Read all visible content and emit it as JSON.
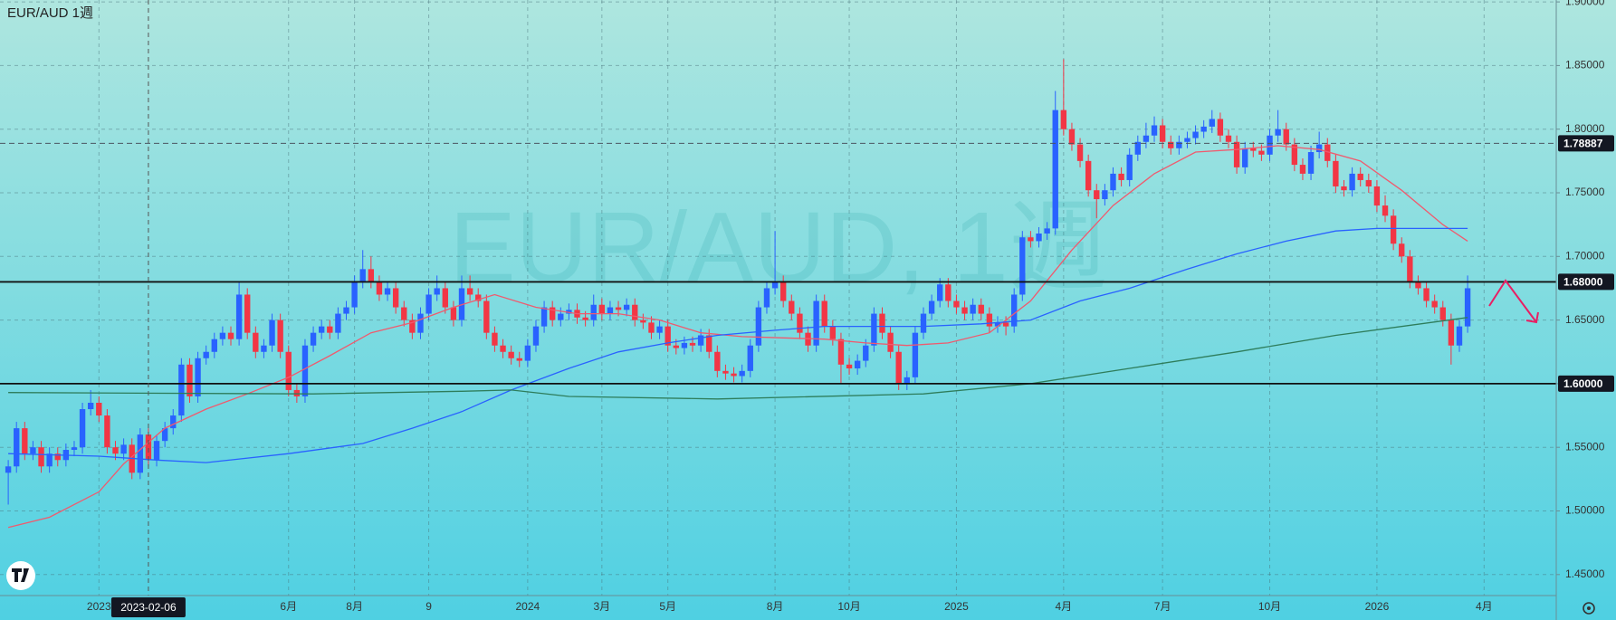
{
  "chart_data": {
    "type": "candlestick",
    "title": "EUR/AUD  1週",
    "watermark": "EUR/AUD, 1週",
    "up_color": "#2962ff",
    "down_color": "#f23645",
    "open": [
      1.53,
      1.535,
      1.565,
      1.545,
      1.55,
      1.535,
      1.545,
      1.54,
      1.548,
      1.55,
      1.58,
      1.585,
      1.575,
      1.55,
      1.545,
      1.552,
      1.53,
      1.56,
      1.54,
      1.555,
      1.565,
      1.575,
      1.615,
      1.59,
      1.62,
      1.625,
      1.635,
      1.64,
      1.635,
      1.67,
      1.64,
      1.625,
      1.63,
      1.65,
      1.625,
      1.595,
      1.59,
      1.63,
      1.64,
      1.645,
      1.64,
      1.655,
      1.66,
      1.68,
      1.69,
      1.68,
      1.67,
      1.675,
      1.66,
      1.65,
      1.64,
      1.655,
      1.67,
      1.675,
      1.66,
      1.65,
      1.675,
      1.67,
      1.665,
      1.64,
      1.63,
      1.625,
      1.62,
      1.618,
      1.63,
      1.645,
      1.66,
      1.65,
      1.655,
      1.658,
      1.652,
      1.65,
      1.662,
      1.655,
      1.66,
      1.658,
      1.662,
      1.65,
      1.648,
      1.64,
      1.645,
      1.63,
      1.628,
      1.632,
      1.63,
      1.638,
      1.625,
      1.61,
      1.608,
      1.606,
      1.61,
      1.63,
      1.66,
      1.675,
      1.68,
      1.665,
      1.655,
      1.64,
      1.63,
      1.665,
      1.645,
      1.635,
      1.615,
      1.612,
      1.618,
      1.63,
      1.655,
      1.64,
      1.625,
      1.6,
      1.605,
      1.64,
      1.655,
      1.665,
      1.678,
      1.665,
      1.66,
      1.655,
      1.662,
      1.655,
      1.645,
      1.648,
      1.645,
      1.67,
      1.715,
      1.712,
      1.718,
      1.722,
      1.815,
      1.8,
      1.788,
      1.775,
      1.752,
      1.745,
      1.752,
      1.765,
      1.76,
      1.78,
      1.79,
      1.795,
      1.803,
      1.79,
      1.785,
      1.79,
      1.793,
      1.798,
      1.802,
      1.808,
      1.795,
      1.79,
      1.77,
      1.785,
      1.783,
      1.78,
      1.795,
      1.8,
      1.788,
      1.772,
      1.765,
      1.782,
      1.788,
      1.775,
      1.755,
      1.752,
      1.765,
      1.76,
      1.755,
      1.74,
      1.732,
      1.71,
      1.7,
      1.68,
      1.675,
      1.665,
      1.66,
      1.65,
      1.63,
      1.645
    ],
    "high": [
      1.54,
      1.57,
      1.57,
      1.555,
      1.555,
      1.55,
      1.55,
      1.553,
      1.555,
      1.585,
      1.595,
      1.59,
      1.58,
      1.555,
      1.557,
      1.557,
      1.565,
      1.565,
      1.56,
      1.57,
      1.58,
      1.62,
      1.62,
      1.625,
      1.63,
      1.64,
      1.645,
      1.645,
      1.68,
      1.675,
      1.645,
      1.635,
      1.655,
      1.655,
      1.63,
      1.6,
      1.635,
      1.645,
      1.65,
      1.65,
      1.66,
      1.665,
      1.685,
      1.705,
      1.7,
      1.685,
      1.68,
      1.68,
      1.665,
      1.655,
      1.66,
      1.675,
      1.685,
      1.68,
      1.665,
      1.685,
      1.685,
      1.675,
      1.67,
      1.645,
      1.635,
      1.63,
      1.625,
      1.635,
      1.65,
      1.665,
      1.665,
      1.66,
      1.663,
      1.663,
      1.657,
      1.67,
      1.667,
      1.665,
      1.665,
      1.667,
      1.667,
      1.655,
      1.653,
      1.65,
      1.65,
      1.635,
      1.637,
      1.637,
      1.643,
      1.643,
      1.63,
      1.615,
      1.613,
      1.615,
      1.635,
      1.665,
      1.68,
      1.72,
      1.685,
      1.67,
      1.66,
      1.645,
      1.67,
      1.67,
      1.65,
      1.64,
      1.62,
      1.623,
      1.635,
      1.66,
      1.66,
      1.645,
      1.63,
      1.61,
      1.645,
      1.66,
      1.67,
      1.683,
      1.683,
      1.67,
      1.665,
      1.667,
      1.667,
      1.66,
      1.653,
      1.653,
      1.675,
      1.72,
      1.72,
      1.723,
      1.727,
      1.83,
      1.855,
      1.805,
      1.793,
      1.78,
      1.757,
      1.757,
      1.77,
      1.77,
      1.785,
      1.795,
      1.805,
      1.81,
      1.808,
      1.795,
      1.795,
      1.798,
      1.803,
      1.807,
      1.815,
      1.813,
      1.8,
      1.795,
      1.79,
      1.79,
      1.788,
      1.8,
      1.815,
      1.805,
      1.793,
      1.777,
      1.787,
      1.798,
      1.793,
      1.78,
      1.76,
      1.77,
      1.77,
      1.765,
      1.76,
      1.748,
      1.737,
      1.715,
      1.705,
      1.685,
      1.68,
      1.67,
      1.665,
      1.655,
      1.65,
      1.685
    ],
    "low": [
      1.505,
      1.53,
      1.54,
      1.54,
      1.53,
      1.53,
      1.535,
      1.535,
      1.543,
      1.545,
      1.575,
      1.57,
      1.545,
      1.54,
      1.54,
      1.525,
      1.525,
      1.535,
      1.535,
      1.55,
      1.56,
      1.57,
      1.585,
      1.585,
      1.615,
      1.62,
      1.63,
      1.63,
      1.63,
      1.635,
      1.62,
      1.62,
      1.625,
      1.62,
      1.59,
      1.585,
      1.585,
      1.625,
      1.635,
      1.635,
      1.635,
      1.65,
      1.655,
      1.675,
      1.675,
      1.665,
      1.665,
      1.655,
      1.645,
      1.635,
      1.635,
      1.65,
      1.665,
      1.655,
      1.645,
      1.645,
      1.665,
      1.66,
      1.635,
      1.625,
      1.62,
      1.615,
      1.613,
      1.613,
      1.625,
      1.64,
      1.645,
      1.645,
      1.65,
      1.647,
      1.645,
      1.645,
      1.65,
      1.65,
      1.653,
      1.653,
      1.645,
      1.643,
      1.635,
      1.635,
      1.625,
      1.623,
      1.623,
      1.625,
      1.625,
      1.62,
      1.605,
      1.603,
      1.601,
      1.601,
      1.605,
      1.625,
      1.655,
      1.67,
      1.66,
      1.65,
      1.635,
      1.625,
      1.625,
      1.64,
      1.63,
      1.6,
      1.607,
      1.607,
      1.613,
      1.625,
      1.635,
      1.62,
      1.595,
      1.595,
      1.6,
      1.635,
      1.65,
      1.66,
      1.66,
      1.655,
      1.65,
      1.65,
      1.65,
      1.64,
      1.64,
      1.638,
      1.64,
      1.665,
      1.707,
      1.707,
      1.713,
      1.717,
      1.795,
      1.783,
      1.77,
      1.747,
      1.73,
      1.74,
      1.747,
      1.755,
      1.755,
      1.775,
      1.785,
      1.79,
      1.785,
      1.78,
      1.78,
      1.785,
      1.788,
      1.793,
      1.797,
      1.79,
      1.785,
      1.765,
      1.765,
      1.778,
      1.775,
      1.775,
      1.79,
      1.783,
      1.767,
      1.76,
      1.76,
      1.777,
      1.77,
      1.75,
      1.747,
      1.747,
      1.755,
      1.75,
      1.735,
      1.727,
      1.705,
      1.695,
      1.675,
      1.67,
      1.66,
      1.655,
      1.645,
      1.615,
      1.625,
      1.64
    ],
    "close": [
      1.535,
      1.565,
      1.545,
      1.55,
      1.535,
      1.545,
      1.54,
      1.548,
      1.55,
      1.58,
      1.585,
      1.575,
      1.55,
      1.545,
      1.552,
      1.53,
      1.56,
      1.54,
      1.555,
      1.565,
      1.575,
      1.615,
      1.59,
      1.62,
      1.625,
      1.635,
      1.64,
      1.635,
      1.67,
      1.64,
      1.625,
      1.63,
      1.65,
      1.625,
      1.595,
      1.59,
      1.63,
      1.64,
      1.645,
      1.64,
      1.655,
      1.66,
      1.68,
      1.69,
      1.68,
      1.67,
      1.675,
      1.66,
      1.65,
      1.64,
      1.655,
      1.67,
      1.675,
      1.66,
      1.65,
      1.675,
      1.67,
      1.665,
      1.64,
      1.63,
      1.625,
      1.62,
      1.618,
      1.63,
      1.645,
      1.66,
      1.65,
      1.655,
      1.658,
      1.652,
      1.65,
      1.662,
      1.655,
      1.66,
      1.658,
      1.662,
      1.65,
      1.648,
      1.64,
      1.645,
      1.63,
      1.628,
      1.632,
      1.63,
      1.638,
      1.625,
      1.61,
      1.608,
      1.606,
      1.61,
      1.63,
      1.66,
      1.675,
      1.68,
      1.665,
      1.655,
      1.64,
      1.63,
      1.665,
      1.645,
      1.635,
      1.615,
      1.612,
      1.618,
      1.63,
      1.655,
      1.64,
      1.625,
      1.6,
      1.605,
      1.64,
      1.655,
      1.665,
      1.678,
      1.665,
      1.66,
      1.655,
      1.662,
      1.655,
      1.645,
      1.648,
      1.645,
      1.67,
      1.715,
      1.712,
      1.718,
      1.722,
      1.815,
      1.8,
      1.788,
      1.775,
      1.752,
      1.745,
      1.752,
      1.765,
      1.76,
      1.78,
      1.79,
      1.795,
      1.803,
      1.79,
      1.785,
      1.79,
      1.793,
      1.798,
      1.802,
      1.808,
      1.795,
      1.79,
      1.77,
      1.785,
      1.783,
      1.78,
      1.795,
      1.8,
      1.788,
      1.772,
      1.765,
      1.782,
      1.788,
      1.775,
      1.755,
      1.752,
      1.765,
      1.76,
      1.755,
      1.74,
      1.732,
      1.71,
      1.7,
      1.68,
      1.675,
      1.665,
      1.66,
      1.65,
      1.63,
      1.645,
      1.675
    ],
    "lines": [
      {
        "color": "#f05a6e",
        "x": [
          0,
          5,
          11,
          14,
          19,
          24,
          29,
          34,
          39,
          44,
          49,
          54,
          59,
          64,
          69,
          74,
          79,
          84,
          89,
          94,
          99,
          104,
          109,
          114,
          119,
          124,
          129,
          134,
          139,
          144,
          149,
          154,
          159,
          164,
          169,
          174,
          177
        ],
        "values": [
          1.487,
          1.495,
          1.515,
          1.537,
          1.565,
          1.58,
          1.592,
          1.605,
          1.622,
          1.64,
          1.648,
          1.66,
          1.67,
          1.66,
          1.655,
          1.655,
          1.65,
          1.64,
          1.637,
          1.636,
          1.635,
          1.632,
          1.63,
          1.632,
          1.64,
          1.665,
          1.705,
          1.74,
          1.765,
          1.782,
          1.784,
          1.787,
          1.784,
          1.775,
          1.752,
          1.725,
          1.712
        ]
      },
      {
        "color": "#2962ff",
        "x": [
          0,
          11,
          18,
          24,
          34,
          43,
          49,
          55,
          61,
          68,
          74,
          80,
          86,
          93,
          99,
          105,
          111,
          118,
          124,
          130,
          136,
          143,
          149,
          155,
          161,
          166,
          177
        ],
        "values": [
          1.545,
          1.543,
          1.54,
          1.538,
          1.545,
          1.553,
          1.565,
          1.578,
          1.595,
          1.612,
          1.625,
          1.632,
          1.638,
          1.642,
          1.645,
          1.645,
          1.645,
          1.647,
          1.65,
          1.665,
          1.675,
          1.69,
          1.702,
          1.712,
          1.72,
          1.722,
          1.722
        ]
      },
      {
        "color": "#2e7d5b",
        "x": [
          0,
          37,
          55,
          61,
          68,
          86,
          111,
          124,
          136,
          149,
          161,
          177
        ],
        "values": [
          1.593,
          1.592,
          1.594,
          1.595,
          1.59,
          1.588,
          1.592,
          1.6,
          1.612,
          1.625,
          1.638,
          1.652
        ]
      }
    ],
    "price_lines": [
      {
        "value": 1.78887,
        "label": "1.78887",
        "style": "dashed"
      },
      {
        "value": 1.68,
        "label": "1.68000",
        "style": "solid"
      },
      {
        "value": 1.6,
        "label": "1.60000",
        "style": "solid"
      }
    ],
    "xlim": [
      -1,
      187.75
    ],
    "xticks": [
      {
        "value": 11,
        "label": "2023"
      },
      {
        "value": 34,
        "label": "6月"
      },
      {
        "value": 42,
        "label": "8月"
      },
      {
        "value": 51,
        "label": "9"
      },
      {
        "value": 63,
        "label": "2024"
      },
      {
        "value": 72,
        "label": "3月"
      },
      {
        "value": 80,
        "label": "5月"
      },
      {
        "value": 93,
        "label": "8月"
      },
      {
        "value": 102,
        "label": "10月"
      },
      {
        "value": 115,
        "label": "2025"
      },
      {
        "value": 128,
        "label": "4月"
      },
      {
        "value": 140,
        "label": "7月"
      },
      {
        "value": 153,
        "label": "10月"
      },
      {
        "value": 166,
        "label": "2026"
      },
      {
        "value": 179,
        "label": "4月"
      }
    ],
    "ylim": [
      1.4335,
      1.9015
    ],
    "yticks": [
      {
        "value": 1.45,
        "label": "1.45000"
      },
      {
        "value": 1.5,
        "label": "1.50000"
      },
      {
        "value": 1.55,
        "label": "1.55000"
      },
      {
        "value": 1.6,
        "label": "1.60000"
      },
      {
        "value": 1.65,
        "label": "1.65000"
      },
      {
        "value": 1.7,
        "label": "1.70000"
      },
      {
        "value": 1.75,
        "label": "1.75000"
      },
      {
        "value": 1.8,
        "label": "1.80000"
      },
      {
        "value": 1.85,
        "label": "1.85000"
      },
      {
        "value": 1.9,
        "label": "1.90000"
      }
    ],
    "grid": true,
    "crosshair": {
      "x": 17,
      "label": "2023-02-06"
    }
  }
}
